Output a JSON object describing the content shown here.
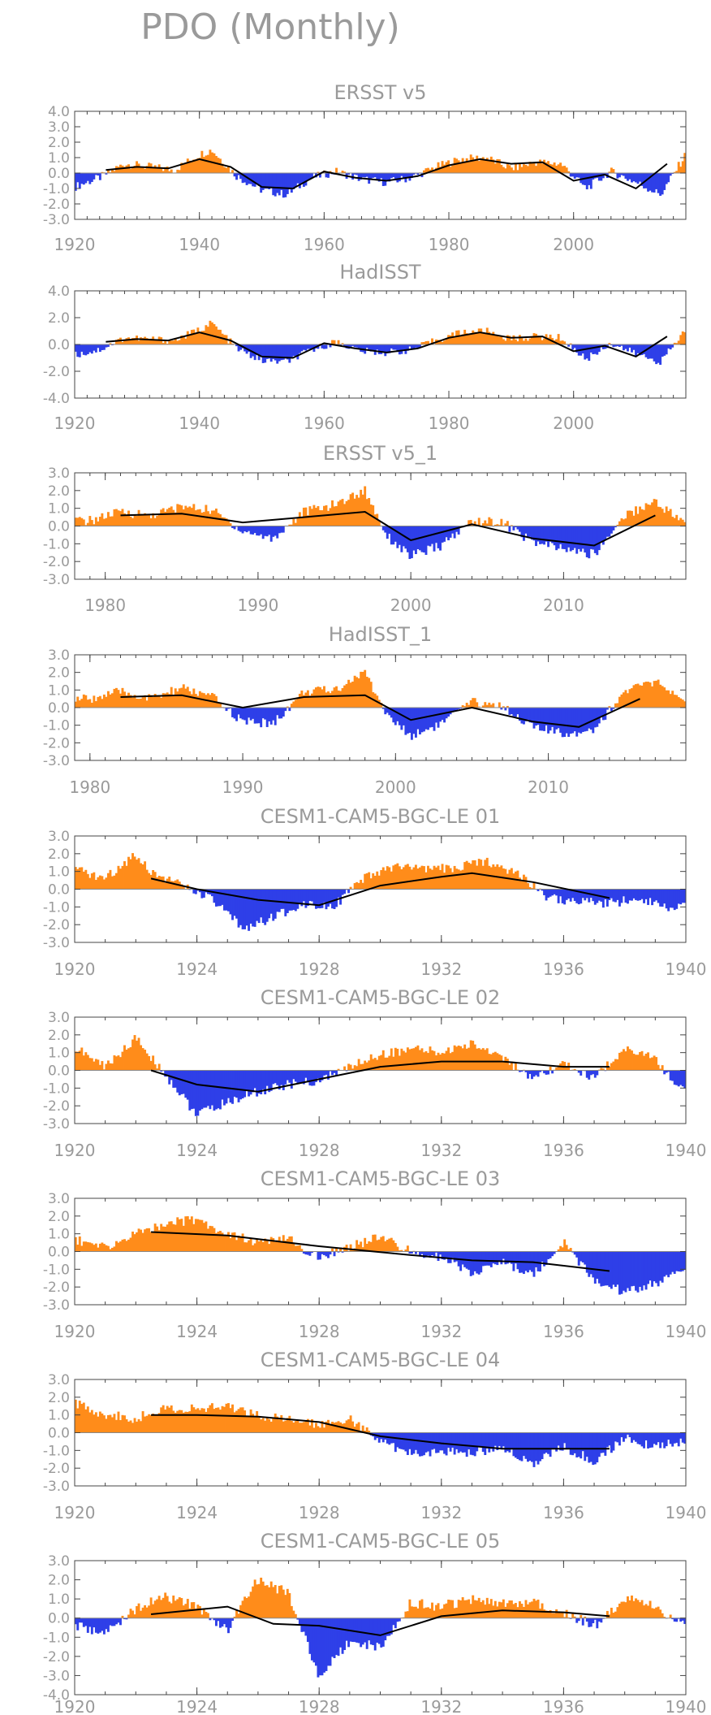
{
  "page": {
    "title": "PDO (Monthly)"
  },
  "colors": {
    "positive": "#ff8c1a",
    "negative": "#2e3fe8",
    "smooth": "#000000",
    "frame": "#444444",
    "text": "#9a9a9a"
  },
  "chart_data": [
    {
      "type": "area",
      "title": "ERSST v5",
      "xlim": [
        1920,
        2018
      ],
      "ylim": [
        -3.0,
        4.0
      ],
      "xticks": [
        1920,
        1940,
        1960,
        1980,
        2000
      ],
      "yticks": [
        4.0,
        3.0,
        2.0,
        1.0,
        0.0,
        -1.0,
        -2.0,
        -3.0
      ],
      "ytick_labels": [
        "4.0",
        "3.0",
        "2.0",
        "1.0",
        "0.0",
        "-1.0",
        "-2.0",
        "-3.0"
      ],
      "x": [
        1920,
        1924,
        1928,
        1932,
        1936,
        1940,
        1942,
        1946,
        1950,
        1954,
        1958,
        1962,
        1966,
        1970,
        1974,
        1978,
        1982,
        1986,
        1990,
        1994,
        1998,
        2002,
        2006,
        2010,
        2014,
        2018
      ],
      "values": [
        -0.9,
        -0.3,
        0.6,
        0.4,
        0.2,
        1.2,
        1.5,
        -0.2,
        -1.1,
        -1.4,
        -0.3,
        0.1,
        -0.4,
        -0.6,
        -0.3,
        0.4,
        0.9,
        1.0,
        0.3,
        0.7,
        0.6,
        -1.0,
        0.1,
        -0.6,
        -1.4,
        1.2
      ],
      "smooth_x": [
        1925,
        1930,
        1935,
        1940,
        1945,
        1950,
        1955,
        1960,
        1965,
        1970,
        1975,
        1980,
        1985,
        1990,
        1995,
        2000,
        2005,
        2010,
        2015
      ],
      "smooth": [
        0.2,
        0.4,
        0.3,
        0.9,
        0.4,
        -0.9,
        -1.0,
        0.1,
        -0.3,
        -0.5,
        -0.2,
        0.5,
        0.9,
        0.6,
        0.7,
        -0.5,
        -0.1,
        -1.0,
        0.6
      ]
    },
    {
      "type": "area",
      "title": "HadISST",
      "xlim": [
        1920,
        2018
      ],
      "ylim": [
        -4.0,
        4.0
      ],
      "xticks": [
        1920,
        1940,
        1960,
        1980,
        2000
      ],
      "yticks": [
        4.0,
        2.0,
        0.0,
        -2.0,
        -4.0
      ],
      "ytick_labels": [
        "4.0",
        "2.0",
        "0.0",
        "-2.0",
        "-4.0"
      ],
      "x": [
        1920,
        1924,
        1928,
        1932,
        1936,
        1940,
        1942,
        1946,
        1950,
        1954,
        1958,
        1962,
        1966,
        1970,
        1974,
        1978,
        1982,
        1986,
        1990,
        1994,
        1998,
        2002,
        2006,
        2010,
        2014,
        2018
      ],
      "values": [
        -0.8,
        -0.4,
        0.5,
        0.4,
        0.3,
        1.1,
        1.6,
        -0.3,
        -1.2,
        -1.3,
        -0.4,
        0.2,
        -0.5,
        -0.6,
        -0.4,
        0.3,
        0.9,
        1.0,
        0.4,
        0.6,
        0.5,
        -1.1,
        0.1,
        -0.7,
        -1.3,
        1.1
      ],
      "smooth_x": [
        1925,
        1930,
        1935,
        1940,
        1945,
        1950,
        1955,
        1960,
        1965,
        1970,
        1975,
        1980,
        1985,
        1990,
        1995,
        2000,
        2005,
        2010,
        2015
      ],
      "smooth": [
        0.2,
        0.4,
        0.3,
        0.9,
        0.3,
        -0.9,
        -1.0,
        0.1,
        -0.3,
        -0.6,
        -0.3,
        0.5,
        0.9,
        0.5,
        0.6,
        -0.5,
        -0.1,
        -0.9,
        0.6
      ]
    },
    {
      "type": "area",
      "title": "ERSST v5_1",
      "xlim": [
        1978,
        2018
      ],
      "ylim": [
        -3.0,
        3.0
      ],
      "xticks": [
        1980,
        1990,
        2000,
        2010
      ],
      "yticks": [
        3.0,
        2.0,
        1.0,
        0.0,
        -1.0,
        -2.0,
        -3.0
      ],
      "ytick_labels": [
        "3.0",
        "2.0",
        "1.0",
        "0.0",
        "-1.0",
        "-2.0",
        "-3.0"
      ],
      "x": [
        1979,
        1981,
        1983,
        1985,
        1987,
        1989,
        1991,
        1993,
        1995,
        1997,
        1998.5,
        2000,
        2002,
        2004,
        2006,
        2008,
        2010,
        2012,
        2014,
        2016,
        2018
      ],
      "values": [
        0.3,
        0.8,
        0.6,
        1.1,
        0.9,
        -0.3,
        -0.7,
        0.8,
        1.2,
        2.0,
        -0.6,
        -1.7,
        -1.1,
        0.3,
        0.2,
        -0.9,
        -1.3,
        -1.6,
        0.6,
        1.4,
        0.1
      ],
      "smooth_x": [
        1981,
        1985,
        1989,
        1993,
        1997,
        2000,
        2004,
        2008,
        2012,
        2016
      ],
      "smooth": [
        0.6,
        0.7,
        0.2,
        0.5,
        0.8,
        -0.8,
        0.1,
        -0.7,
        -1.1,
        0.6
      ]
    },
    {
      "type": "area",
      "title": "HadISST_1",
      "xlim": [
        1979,
        2019
      ],
      "ylim": [
        -3.0,
        3.0
      ],
      "xticks": [
        1980,
        1990,
        2000,
        2010
      ],
      "yticks": [
        3.0,
        2.0,
        1.0,
        0.0,
        -1.0,
        -2.0,
        -3.0
      ],
      "ytick_labels": [
        "3.0",
        "2.0",
        "1.0",
        "0.0",
        "-1.0",
        "-2.0",
        "-3.0"
      ],
      "x": [
        1980,
        1982,
        1984,
        1986,
        1988,
        1990,
        1992,
        1994,
        1996,
        1998,
        1999.5,
        2001,
        2003,
        2005,
        2007,
        2009,
        2011,
        2013,
        2015,
        2017,
        2019
      ],
      "values": [
        0.5,
        0.9,
        0.5,
        1.1,
        0.6,
        -0.8,
        -0.9,
        0.9,
        1.0,
        2.0,
        -0.5,
        -1.6,
        -0.9,
        0.3,
        0.1,
        -1.1,
        -1.5,
        -1.2,
        0.9,
        1.5,
        0.1
      ],
      "smooth_x": [
        1982,
        1986,
        1990,
        1994,
        1998,
        2001,
        2005,
        2009,
        2012,
        2016
      ],
      "smooth": [
        0.6,
        0.7,
        0.0,
        0.6,
        0.7,
        -0.7,
        0.0,
        -0.8,
        -1.1,
        0.5
      ]
    },
    {
      "type": "area",
      "title": "CESM1-CAM5-BGC-LE 01",
      "xlim": [
        1920,
        1940
      ],
      "ylim": [
        -3.0,
        3.0
      ],
      "xticks": [
        1920,
        1924,
        1928,
        1932,
        1936,
        1940
      ],
      "yticks": [
        3.0,
        2.0,
        1.0,
        0.0,
        -1.0,
        -2.0,
        -3.0
      ],
      "ytick_labels": [
        "3.0",
        "2.0",
        "1.0",
        "0.0",
        "-1.0",
        "-2.0",
        "-3.0"
      ],
      "x": [
        1920,
        1921,
        1922,
        1922.5,
        1923.5,
        1924.5,
        1925.5,
        1926.5,
        1927.5,
        1928.5,
        1929.5,
        1930.5,
        1931.5,
        1932.5,
        1933.5,
        1934.5,
        1935.5,
        1936.5,
        1937.5,
        1938.5,
        1939.5
      ],
      "values": [
        1.1,
        0.6,
        2.0,
        1.0,
        0.2,
        -0.6,
        -2.2,
        -1.6,
        -0.8,
        -0.9,
        0.6,
        1.3,
        1.1,
        1.2,
        1.6,
        0.9,
        -0.5,
        -0.7,
        -0.8,
        -0.5,
        -1.0
      ],
      "smooth_x": [
        1922.5,
        1924,
        1926,
        1928,
        1930,
        1932,
        1933,
        1935,
        1937.5
      ],
      "smooth": [
        0.6,
        0.0,
        -0.6,
        -0.9,
        0.2,
        0.7,
        0.9,
        0.4,
        -0.5
      ]
    },
    {
      "type": "area",
      "title": "CESM1-CAM5-BGC-LE 02",
      "xlim": [
        1920,
        1940
      ],
      "ylim": [
        -3.0,
        3.0
      ],
      "xticks": [
        1920,
        1924,
        1928,
        1932,
        1936,
        1940
      ],
      "yticks": [
        3.0,
        2.0,
        1.0,
        0.0,
        -1.0,
        -2.0,
        -3.0
      ],
      "ytick_labels": [
        "3.0",
        "2.0",
        "1.0",
        "0.0",
        "-1.0",
        "-2.0",
        "-3.0"
      ],
      "x": [
        1920,
        1921,
        1922,
        1923,
        1924,
        1925,
        1926,
        1927,
        1928,
        1929,
        1930,
        1931,
        1932,
        1933,
        1934,
        1935,
        1936,
        1937,
        1938,
        1939,
        1939.8
      ],
      "values": [
        1.3,
        0.2,
        1.8,
        -0.3,
        -2.5,
        -1.8,
        -1.2,
        -0.8,
        -0.6,
        0.2,
        0.9,
        1.2,
        1.0,
        1.5,
        0.8,
        -0.6,
        0.4,
        -0.5,
        1.3,
        0.6,
        -1.0
      ],
      "smooth_x": [
        1922.5,
        1924,
        1926,
        1928,
        1930,
        1932,
        1934,
        1936,
        1937.5
      ],
      "smooth": [
        0.0,
        -0.8,
        -1.2,
        -0.5,
        0.2,
        0.5,
        0.5,
        0.2,
        0.2
      ]
    },
    {
      "type": "area",
      "title": "CESM1-CAM5-BGC-LE 03",
      "xlim": [
        1920,
        1940
      ],
      "ylim": [
        -3.0,
        3.0
      ],
      "xticks": [
        1920,
        1924,
        1928,
        1932,
        1936,
        1940
      ],
      "yticks": [
        3.0,
        2.0,
        1.0,
        0.0,
        -1.0,
        -2.0,
        -3.0
      ],
      "ytick_labels": [
        "3.0",
        "2.0",
        "1.0",
        "0.0",
        "-1.0",
        "-2.0",
        "-3.0"
      ],
      "x": [
        1920,
        1921,
        1922,
        1923,
        1924,
        1925,
        1926,
        1927,
        1928,
        1929,
        1930,
        1931,
        1932,
        1933,
        1934,
        1935,
        1936,
        1937,
        1938,
        1939,
        1939.8
      ],
      "values": [
        0.7,
        0.2,
        1.0,
        1.6,
        1.8,
        1.0,
        0.5,
        0.7,
        -0.4,
        0.3,
        0.8,
        0.0,
        -0.3,
        -1.2,
        -0.6,
        -1.3,
        0.5,
        -1.6,
        -2.3,
        -1.8,
        -1.2
      ],
      "smooth_x": [
        1922.5,
        1925,
        1928,
        1931,
        1933,
        1935,
        1937.5
      ],
      "smooth": [
        1.1,
        0.9,
        0.3,
        -0.2,
        -0.5,
        -0.6,
        -1.1
      ]
    },
    {
      "type": "area",
      "title": "CESM1-CAM5-BGC-LE 04",
      "xlim": [
        1920,
        1940
      ],
      "ylim": [
        -3.0,
        3.0
      ],
      "xticks": [
        1920,
        1924,
        1928,
        1932,
        1936,
        1940
      ],
      "yticks": [
        3.0,
        2.0,
        1.0,
        0.0,
        -1.0,
        -2.0,
        -3.0
      ],
      "ytick_labels": [
        "3.0",
        "2.0",
        "1.0",
        "0.0",
        "-1.0",
        "-2.0",
        "-3.0"
      ],
      "x": [
        1920,
        1921,
        1922,
        1923,
        1924,
        1925,
        1926,
        1927,
        1928,
        1929,
        1930,
        1931,
        1932,
        1933,
        1934,
        1935,
        1936,
        1937,
        1938,
        1939,
        1939.8
      ],
      "values": [
        1.7,
        1.0,
        0.8,
        1.4,
        1.3,
        1.5,
        1.0,
        0.7,
        0.5,
        0.8,
        -0.5,
        -1.2,
        -1.0,
        -1.1,
        -0.9,
        -1.7,
        -0.8,
        -1.6,
        -0.3,
        -0.8,
        -0.5
      ],
      "smooth_x": [
        1922.5,
        1924,
        1926,
        1928,
        1930,
        1932,
        1934,
        1936,
        1937.5
      ],
      "smooth": [
        1.0,
        1.0,
        0.9,
        0.6,
        -0.2,
        -0.6,
        -0.9,
        -0.9,
        -0.9
      ]
    },
    {
      "type": "area",
      "title": "CESM1-CAM5-BGC-LE 05",
      "xlim": [
        1920,
        1940
      ],
      "ylim": [
        -4.0,
        3.0
      ],
      "xticks": [
        1920,
        1924,
        1928,
        1932,
        1936,
        1940
      ],
      "yticks": [
        3.0,
        2.0,
        1.0,
        0.0,
        -1.0,
        -2.0,
        -3.0,
        -4.0
      ],
      "ytick_labels": [
        "3.0",
        "2.0",
        "1.0",
        "0.0",
        "-1.0",
        "-2.0",
        "-3.0",
        "-4.0"
      ],
      "x": [
        1920,
        1921,
        1922,
        1923,
        1924,
        1925,
        1926,
        1927,
        1928,
        1929,
        1930,
        1931,
        1932,
        1933,
        1934,
        1935,
        1936,
        1937,
        1938,
        1939,
        1939.8
      ],
      "values": [
        -0.4,
        -0.8,
        0.5,
        1.1,
        0.6,
        -0.6,
        2.0,
        1.3,
        -3.0,
        -1.2,
        -1.5,
        0.8,
        0.6,
        1.0,
        0.7,
        0.9,
        0.3,
        -0.4,
        1.0,
        0.6,
        -0.3
      ],
      "smooth_x": [
        1922.5,
        1925,
        1926.5,
        1928,
        1930,
        1932,
        1934,
        1936,
        1937.5
      ],
      "smooth": [
        0.2,
        0.6,
        -0.3,
        -0.4,
        -0.9,
        0.1,
        0.4,
        0.3,
        0.1
      ]
    }
  ]
}
